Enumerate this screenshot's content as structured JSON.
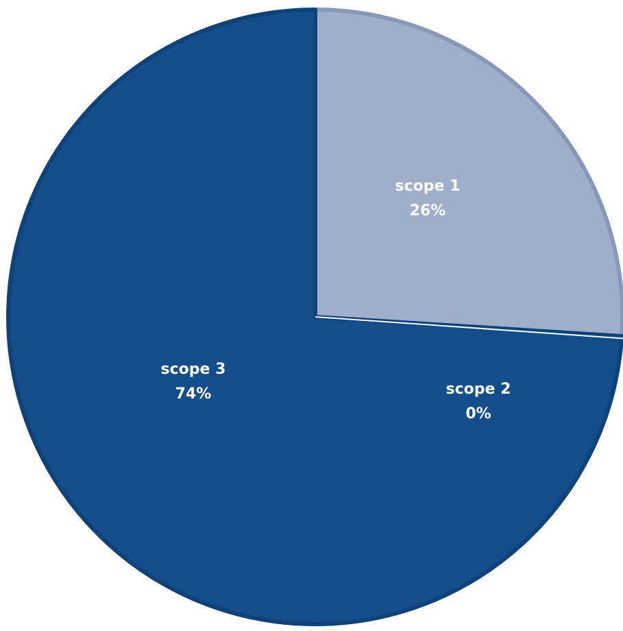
{
  "chart_data": {
    "type": "pie",
    "slices": [
      {
        "label": "scope 1",
        "value": 26,
        "value_label": "26%",
        "color": "#9FAECB",
        "border": "#8A98B8"
      },
      {
        "label": "scope 2",
        "value": 0,
        "value_label": "0%",
        "color": "#134D8A",
        "border": "#FFFFFF"
      },
      {
        "label": "scope 3",
        "value": 74,
        "value_label": "74%",
        "color": "#134D8A",
        "border": "#0E4279"
      }
    ],
    "start": "12 o'clock",
    "direction": "clockwise",
    "legend": "none",
    "data_labels": "inside"
  }
}
